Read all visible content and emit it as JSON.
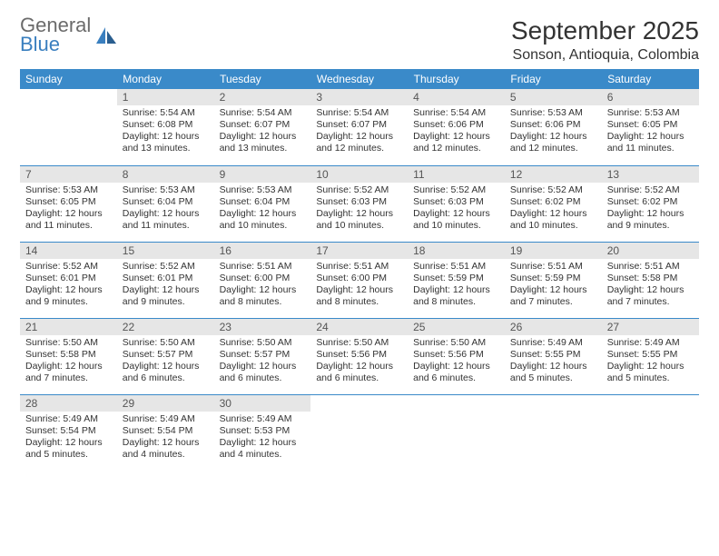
{
  "brand": {
    "word1": "General",
    "word2": "Blue"
  },
  "title": "September 2025",
  "location": "Sonson, Antioquia, Colombia",
  "colors": {
    "header_bg": "#3a8ac9",
    "header_text": "#ffffff",
    "daynum_bg": "#e6e6e6",
    "rule": "#3a8ac9",
    "brand_gray": "#6b6b6b",
    "brand_blue": "#3a7fbf"
  },
  "columns": [
    "Sunday",
    "Monday",
    "Tuesday",
    "Wednesday",
    "Thursday",
    "Friday",
    "Saturday"
  ],
  "weeks": [
    [
      {
        "n": "",
        "empty": true
      },
      {
        "n": "1",
        "sr": "5:54 AM",
        "ss": "6:08 PM",
        "dl": "12 hours and 13 minutes."
      },
      {
        "n": "2",
        "sr": "5:54 AM",
        "ss": "6:07 PM",
        "dl": "12 hours and 13 minutes."
      },
      {
        "n": "3",
        "sr": "5:54 AM",
        "ss": "6:07 PM",
        "dl": "12 hours and 12 minutes."
      },
      {
        "n": "4",
        "sr": "5:54 AM",
        "ss": "6:06 PM",
        "dl": "12 hours and 12 minutes."
      },
      {
        "n": "5",
        "sr": "5:53 AM",
        "ss": "6:06 PM",
        "dl": "12 hours and 12 minutes."
      },
      {
        "n": "6",
        "sr": "5:53 AM",
        "ss": "6:05 PM",
        "dl": "12 hours and 11 minutes."
      }
    ],
    [
      {
        "n": "7",
        "sr": "5:53 AM",
        "ss": "6:05 PM",
        "dl": "12 hours and 11 minutes."
      },
      {
        "n": "8",
        "sr": "5:53 AM",
        "ss": "6:04 PM",
        "dl": "12 hours and 11 minutes."
      },
      {
        "n": "9",
        "sr": "5:53 AM",
        "ss": "6:04 PM",
        "dl": "12 hours and 10 minutes."
      },
      {
        "n": "10",
        "sr": "5:52 AM",
        "ss": "6:03 PM",
        "dl": "12 hours and 10 minutes."
      },
      {
        "n": "11",
        "sr": "5:52 AM",
        "ss": "6:03 PM",
        "dl": "12 hours and 10 minutes."
      },
      {
        "n": "12",
        "sr": "5:52 AM",
        "ss": "6:02 PM",
        "dl": "12 hours and 10 minutes."
      },
      {
        "n": "13",
        "sr": "5:52 AM",
        "ss": "6:02 PM",
        "dl": "12 hours and 9 minutes."
      }
    ],
    [
      {
        "n": "14",
        "sr": "5:52 AM",
        "ss": "6:01 PM",
        "dl": "12 hours and 9 minutes."
      },
      {
        "n": "15",
        "sr": "5:52 AM",
        "ss": "6:01 PM",
        "dl": "12 hours and 9 minutes."
      },
      {
        "n": "16",
        "sr": "5:51 AM",
        "ss": "6:00 PM",
        "dl": "12 hours and 8 minutes."
      },
      {
        "n": "17",
        "sr": "5:51 AM",
        "ss": "6:00 PM",
        "dl": "12 hours and 8 minutes."
      },
      {
        "n": "18",
        "sr": "5:51 AM",
        "ss": "5:59 PM",
        "dl": "12 hours and 8 minutes."
      },
      {
        "n": "19",
        "sr": "5:51 AM",
        "ss": "5:59 PM",
        "dl": "12 hours and 7 minutes."
      },
      {
        "n": "20",
        "sr": "5:51 AM",
        "ss": "5:58 PM",
        "dl": "12 hours and 7 minutes."
      }
    ],
    [
      {
        "n": "21",
        "sr": "5:50 AM",
        "ss": "5:58 PM",
        "dl": "12 hours and 7 minutes."
      },
      {
        "n": "22",
        "sr": "5:50 AM",
        "ss": "5:57 PM",
        "dl": "12 hours and 6 minutes."
      },
      {
        "n": "23",
        "sr": "5:50 AM",
        "ss": "5:57 PM",
        "dl": "12 hours and 6 minutes."
      },
      {
        "n": "24",
        "sr": "5:50 AM",
        "ss": "5:56 PM",
        "dl": "12 hours and 6 minutes."
      },
      {
        "n": "25",
        "sr": "5:50 AM",
        "ss": "5:56 PM",
        "dl": "12 hours and 6 minutes."
      },
      {
        "n": "26",
        "sr": "5:49 AM",
        "ss": "5:55 PM",
        "dl": "12 hours and 5 minutes."
      },
      {
        "n": "27",
        "sr": "5:49 AM",
        "ss": "5:55 PM",
        "dl": "12 hours and 5 minutes."
      }
    ],
    [
      {
        "n": "28",
        "sr": "5:49 AM",
        "ss": "5:54 PM",
        "dl": "12 hours and 5 minutes."
      },
      {
        "n": "29",
        "sr": "5:49 AM",
        "ss": "5:54 PM",
        "dl": "12 hours and 4 minutes."
      },
      {
        "n": "30",
        "sr": "5:49 AM",
        "ss": "5:53 PM",
        "dl": "12 hours and 4 minutes."
      },
      {
        "n": "",
        "empty": true
      },
      {
        "n": "",
        "empty": true
      },
      {
        "n": "",
        "empty": true
      },
      {
        "n": "",
        "empty": true
      }
    ]
  ],
  "labels": {
    "sunrise": "Sunrise:",
    "sunset": "Sunset:",
    "daylight": "Daylight:"
  }
}
